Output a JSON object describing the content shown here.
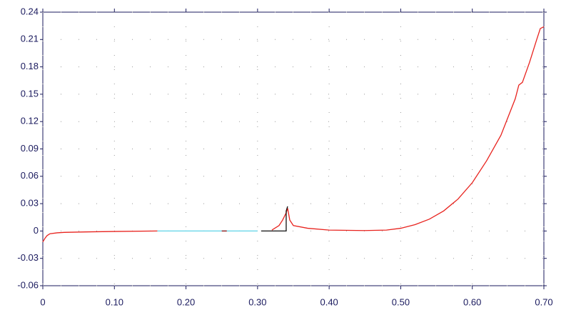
{
  "chart_data": {
    "type": "line",
    "xlim": [
      0,
      0.7
    ],
    "xticks": [
      0,
      {
        "value": 0.1,
        "label": "0.10"
      },
      {
        "value": 0.2,
        "label": "0.20"
      },
      {
        "value": 0.3,
        "label": "0.30"
      },
      {
        "value": 0.4,
        "label": "0.40"
      },
      {
        "value": 0.5,
        "label": "0.50"
      },
      {
        "value": 0.6,
        "label": "0.60"
      },
      {
        "value": 0.7,
        "label": "0.70"
      }
    ],
    "ylim": [
      -0.06,
      0.24
    ],
    "yticks": [
      -0.06,
      -0.03,
      0,
      0.03,
      0.06,
      0.09,
      0.12,
      0.15,
      0.18,
      0.21,
      0.24
    ],
    "grid": true,
    "series": [
      {
        "color": "#e8231e",
        "x": [
          0,
          0.003,
          0.006,
          0.01,
          0.02,
          0.03,
          0.06,
          0.1,
          0.16,
          null,
          0.32,
          0.33,
          0.335,
          0.34,
          0.342,
          0.345,
          0.35,
          0.37,
          0.4,
          0.45,
          0.48,
          0.5,
          0.52,
          0.54,
          0.56,
          0.58,
          0.6,
          0.62,
          0.64,
          0.66,
          0.665,
          0.67,
          0.68,
          0.69,
          0.695,
          0.7
        ],
        "values": [
          -0.012,
          -0.008,
          -0.005,
          -0.003,
          -0.002,
          -0.0015,
          -0.001,
          -0.0005,
          0,
          null,
          0.001,
          0.006,
          0.012,
          0.02,
          0.025,
          0.012,
          0.006,
          0.003,
          0.001,
          0.0005,
          0.001,
          0.003,
          0.007,
          0.013,
          0.022,
          0.035,
          0.053,
          0.077,
          0.105,
          0.145,
          0.16,
          0.163,
          0.185,
          0.21,
          0.222,
          0.224
        ]
      },
      {
        "color": "#5fd3e8",
        "x": [
          0.16,
          0.3
        ],
        "values": [
          0,
          0
        ]
      },
      {
        "color": "#8b1010",
        "x": [
          0.25,
          0.257
        ],
        "values": [
          0,
          0
        ]
      },
      {
        "color": "#111111",
        "x": [
          0.305,
          0.34,
          0.34,
          0.342
        ],
        "values": [
          0,
          0,
          0.022,
          0.027
        ]
      }
    ]
  }
}
